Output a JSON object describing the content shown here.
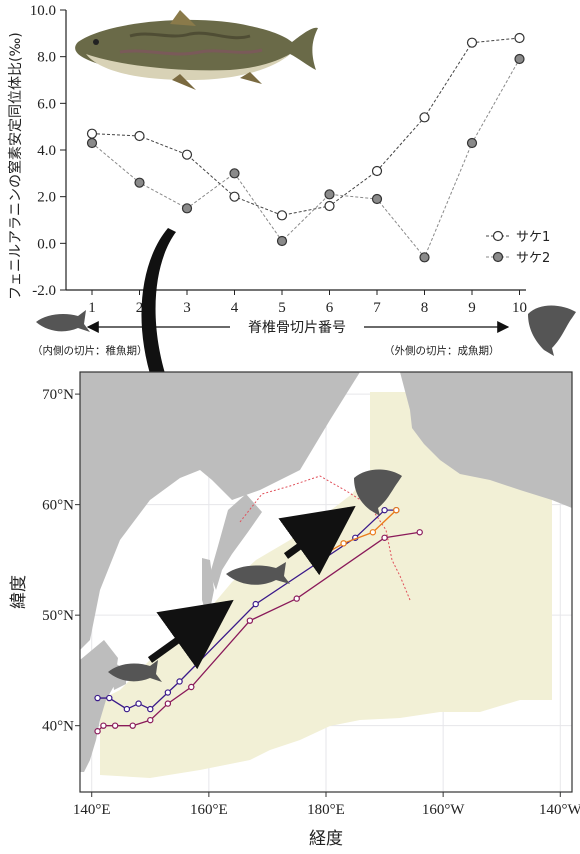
{
  "chart_data": [
    {
      "type": "line",
      "ylabel": "フェニルアラニンの窒素安定同位体比(‰)",
      "xlabel": "脊椎骨切片番号",
      "xticks": [
        "1",
        "2",
        "3",
        "4",
        "5",
        "6",
        "7",
        "8",
        "9",
        "10"
      ],
      "yticks": [
        "-2.0",
        "0.0",
        "2.0",
        "4.0",
        "6.0",
        "8.0",
        "10.0"
      ],
      "ylim": [
        -2.0,
        10.0
      ],
      "x": [
        1,
        2,
        3,
        4,
        5,
        6,
        7,
        8,
        9,
        10
      ],
      "series": [
        {
          "name": "サケ1",
          "marker": "open",
          "values": [
            4.7,
            4.6,
            3.8,
            2.0,
            1.2,
            1.6,
            3.1,
            5.4,
            8.6,
            8.8
          ]
        },
        {
          "name": "サケ2",
          "marker": "filled",
          "values": [
            4.3,
            2.6,
            1.5,
            3.0,
            0.1,
            2.1,
            1.9,
            -0.6,
            4.3,
            7.9
          ]
        }
      ],
      "left_note": "（内側の切片：稚魚期）",
      "right_note": "（外側の切片：成魚期）",
      "legend_position": "right"
    },
    {
      "type": "map",
      "xlabel": "経度",
      "ylabel": "緯度",
      "xticks": [
        "140°E",
        "160°E",
        "180°E",
        "160°W",
        "140°W"
      ],
      "yticks": [
        "40°N",
        "50°N",
        "60°N",
        "70°N"
      ],
      "xlim": [
        138,
        222
      ],
      "ylim": [
        34,
        72
      ],
      "tracks": [
        {
          "color": "#3a1a8a",
          "points": [
            [
              141,
              42.5
            ],
            [
              143,
              42.5
            ],
            [
              146,
              41.5
            ],
            [
              148,
              42
            ],
            [
              150,
              41.5
            ],
            [
              153,
              43
            ],
            [
              155,
              44
            ],
            [
              168,
              51
            ],
            [
              185,
              57
            ],
            [
              190,
              59.5
            ],
            [
              192,
              59.5
            ]
          ]
        },
        {
          "color": "#8a1a5a",
          "points": [
            [
              141,
              39.5
            ],
            [
              142,
              40
            ],
            [
              144,
              40
            ],
            [
              147,
              40
            ],
            [
              150,
              40.5
            ],
            [
              153,
              42
            ],
            [
              157,
              43.5
            ],
            [
              167,
              49.5
            ],
            [
              175,
              51.5
            ],
            [
              190,
              57
            ],
            [
              196,
              57.5
            ]
          ]
        },
        {
          "color": "#ea7a1a",
          "points": [
            [
              178,
              55
            ],
            [
              183,
              56.5
            ],
            [
              188,
              57.5
            ],
            [
              192,
              59.5
            ]
          ]
        }
      ],
      "colors": {
        "land": "#bdbdbd",
        "ocean_area": "#f2f0d6",
        "track_dotted": "#e0505a"
      }
    }
  ]
}
